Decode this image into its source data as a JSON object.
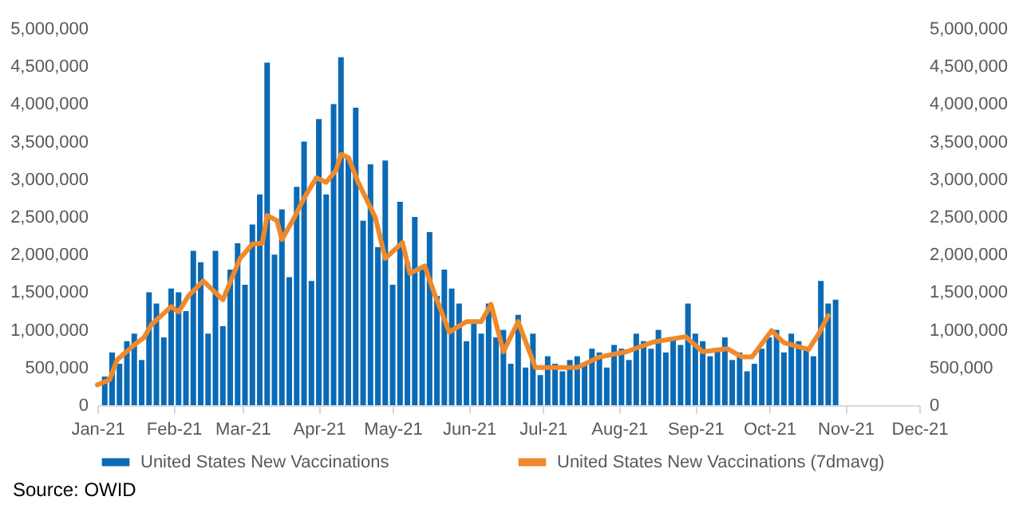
{
  "chart_data": {
    "type": "bar",
    "annotations": [
      "Source:  OWID"
    ],
    "xlim": [
      "2021-01-01",
      "2021-12-01"
    ],
    "xticks": [
      {
        "value": "2021-01-01",
        "label": "Jan-21"
      },
      {
        "value": "2021-02-01",
        "label": "Feb-21"
      },
      {
        "value": "2021-03-01",
        "label": "Mar-21"
      },
      {
        "value": "2021-04-01",
        "label": "Apr-21"
      },
      {
        "value": "2021-05-01",
        "label": "May-21"
      },
      {
        "value": "2021-06-01",
        "label": "Jun-21"
      },
      {
        "value": "2021-07-01",
        "label": "Jul-21"
      },
      {
        "value": "2021-08-01",
        "label": "Aug-21"
      },
      {
        "value": "2021-09-01",
        "label": "Sep-21"
      },
      {
        "value": "2021-10-01",
        "label": "Oct-21"
      },
      {
        "value": "2021-11-01",
        "label": "Nov-21"
      },
      {
        "value": "2021-12-01",
        "label": "Dec-21"
      }
    ],
    "ylim": [
      0,
      5000000
    ],
    "yticks": [
      {
        "value": 0,
        "label": "0"
      },
      {
        "value": 500000,
        "label": "500,000"
      },
      {
        "value": 1000000,
        "label": "1,000,000"
      },
      {
        "value": 1500000,
        "label": "1,500,000"
      },
      {
        "value": 2000000,
        "label": "2,000,000"
      },
      {
        "value": 2500000,
        "label": "2,500,000"
      },
      {
        "value": 3000000,
        "label": "3,000,000"
      },
      {
        "value": 3500000,
        "label": "3,500,000"
      },
      {
        "value": 4000000,
        "label": "4,000,000"
      },
      {
        "value": 4500000,
        "label": "4,500,000"
      },
      {
        "value": 5000000,
        "label": "5,000,000"
      }
    ],
    "y2lim": [
      0,
      5000000
    ],
    "y2ticks": [
      {
        "value": 0,
        "label": "0"
      },
      {
        "value": 500000,
        "label": "500,000"
      },
      {
        "value": 1000000,
        "label": "1,000,000"
      },
      {
        "value": 1500000,
        "label": "1,500,000"
      },
      {
        "value": 2000000,
        "label": "2,000,000"
      },
      {
        "value": 2500000,
        "label": "2,500,000"
      },
      {
        "value": 3000000,
        "label": "3,000,000"
      },
      {
        "value": 3500000,
        "label": "3,500,000"
      },
      {
        "value": 4000000,
        "label": "4,000,000"
      },
      {
        "value": 4500000,
        "label": "4,500,000"
      },
      {
        "value": 5000000,
        "label": "5,000,000"
      }
    ],
    "legend": "bottom",
    "grid": false,
    "x": [
      "2021-01-04",
      "2021-01-07",
      "2021-01-10",
      "2021-01-13",
      "2021-01-16",
      "2021-01-19",
      "2021-01-22",
      "2021-01-25",
      "2021-01-28",
      "2021-01-31",
      "2021-02-03",
      "2021-02-06",
      "2021-02-09",
      "2021-02-12",
      "2021-02-15",
      "2021-02-18",
      "2021-02-21",
      "2021-02-24",
      "2021-02-27",
      "2021-03-02",
      "2021-03-05",
      "2021-03-08",
      "2021-03-11",
      "2021-03-14",
      "2021-03-17",
      "2021-03-20",
      "2021-03-23",
      "2021-03-26",
      "2021-03-29",
      "2021-04-01",
      "2021-04-04",
      "2021-04-07",
      "2021-04-10",
      "2021-04-13",
      "2021-04-16",
      "2021-04-19",
      "2021-04-22",
      "2021-04-25",
      "2021-04-28",
      "2021-05-01",
      "2021-05-04",
      "2021-05-07",
      "2021-05-10",
      "2021-05-13",
      "2021-05-16",
      "2021-05-19",
      "2021-05-22",
      "2021-05-25",
      "2021-05-28",
      "2021-05-31",
      "2021-06-03",
      "2021-06-06",
      "2021-06-09",
      "2021-06-12",
      "2021-06-15",
      "2021-06-18",
      "2021-06-21",
      "2021-06-24",
      "2021-06-27",
      "2021-06-30",
      "2021-07-03",
      "2021-07-06",
      "2021-07-09",
      "2021-07-12",
      "2021-07-15",
      "2021-07-18",
      "2021-07-21",
      "2021-07-24",
      "2021-07-27",
      "2021-07-30",
      "2021-08-02",
      "2021-08-05",
      "2021-08-08",
      "2021-08-11",
      "2021-08-14",
      "2021-08-17",
      "2021-08-20",
      "2021-08-23",
      "2021-08-26",
      "2021-08-29",
      "2021-09-01",
      "2021-09-04",
      "2021-09-07",
      "2021-09-10",
      "2021-09-13",
      "2021-09-16",
      "2021-09-19",
      "2021-09-22",
      "2021-09-25",
      "2021-09-28",
      "2021-10-01",
      "2021-10-04",
      "2021-10-07",
      "2021-10-10",
      "2021-10-13",
      "2021-10-16",
      "2021-10-19",
      "2021-10-22",
      "2021-10-25",
      "2021-10-28"
    ],
    "series": [
      {
        "name": "United States New Vaccinations",
        "color": "#0a6ab6",
        "values": [
          380000,
          700000,
          550000,
          850000,
          950000,
          600000,
          1500000,
          1350000,
          900000,
          1550000,
          1500000,
          1250000,
          2050000,
          1900000,
          950000,
          2050000,
          1050000,
          1800000,
          2150000,
          1600000,
          2400000,
          2800000,
          4550000,
          2000000,
          2600000,
          1700000,
          2900000,
          3500000,
          1650000,
          3800000,
          2800000,
          4000000,
          4620000,
          3300000,
          3950000,
          2450000,
          3200000,
          2100000,
          3250000,
          1600000,
          2700000,
          1900000,
          2500000,
          1800000,
          2300000,
          1450000,
          1800000,
          1550000,
          1350000,
          850000,
          1100000,
          950000,
          1350000,
          900000,
          1000000,
          550000,
          1200000,
          500000,
          950000,
          400000,
          650000,
          550000,
          450000,
          600000,
          650000,
          550000,
          750000,
          700000,
          500000,
          800000,
          750000,
          600000,
          950000,
          850000,
          750000,
          1000000,
          700000,
          900000,
          800000,
          1350000,
          950000,
          850000,
          650000,
          750000,
          900000,
          600000,
          700000,
          450000,
          550000,
          750000,
          900000,
          1000000,
          700000,
          950000,
          850000,
          750000,
          650000,
          1650000,
          1350000,
          1400000
        ]
      },
      {
        "name": "United States New Vaccinations (7dmavg)",
        "type": "line",
        "axis": "y2",
        "color": "#f0892a",
        "x": [
          "2021-01-01",
          "2021-01-06",
          "2021-01-09",
          "2021-01-16",
          "2021-01-20",
          "2021-01-23",
          "2021-01-31",
          "2021-02-03",
          "2021-02-07",
          "2021-02-13",
          "2021-02-21",
          "2021-02-28",
          "2021-03-05",
          "2021-03-09",
          "2021-03-11",
          "2021-03-15",
          "2021-03-17",
          "2021-03-22",
          "2021-03-26",
          "2021-03-31",
          "2021-04-04",
          "2021-04-08",
          "2021-04-10",
          "2021-04-13",
          "2021-04-17",
          "2021-04-24",
          "2021-04-28",
          "2021-05-05",
          "2021-05-08",
          "2021-05-14",
          "2021-05-18",
          "2021-05-24",
          "2021-05-31",
          "2021-06-06",
          "2021-06-10",
          "2021-06-15",
          "2021-06-21",
          "2021-06-28",
          "2021-07-04",
          "2021-07-15",
          "2021-07-24",
          "2021-08-04",
          "2021-08-15",
          "2021-08-28",
          "2021-09-04",
          "2021-09-14",
          "2021-09-20",
          "2021-09-24",
          "2021-10-02",
          "2021-10-07",
          "2021-10-17",
          "2021-10-21",
          "2021-10-25"
        ],
        "values": [
          270000,
          340000,
          600000,
          800000,
          900000,
          1070000,
          1310000,
          1240000,
          1450000,
          1650000,
          1400000,
          1950000,
          2140000,
          2150000,
          2520000,
          2450000,
          2200000,
          2490000,
          2750000,
          3020000,
          2960000,
          3120000,
          3330000,
          3290000,
          2960000,
          2490000,
          1950000,
          2160000,
          1750000,
          1850000,
          1480000,
          970000,
          1110000,
          1110000,
          1340000,
          710000,
          1110000,
          500000,
          500000,
          500000,
          640000,
          710000,
          840000,
          910000,
          710000,
          750000,
          640000,
          640000,
          990000,
          830000,
          740000,
          940000,
          1190000
        ]
      }
    ]
  }
}
